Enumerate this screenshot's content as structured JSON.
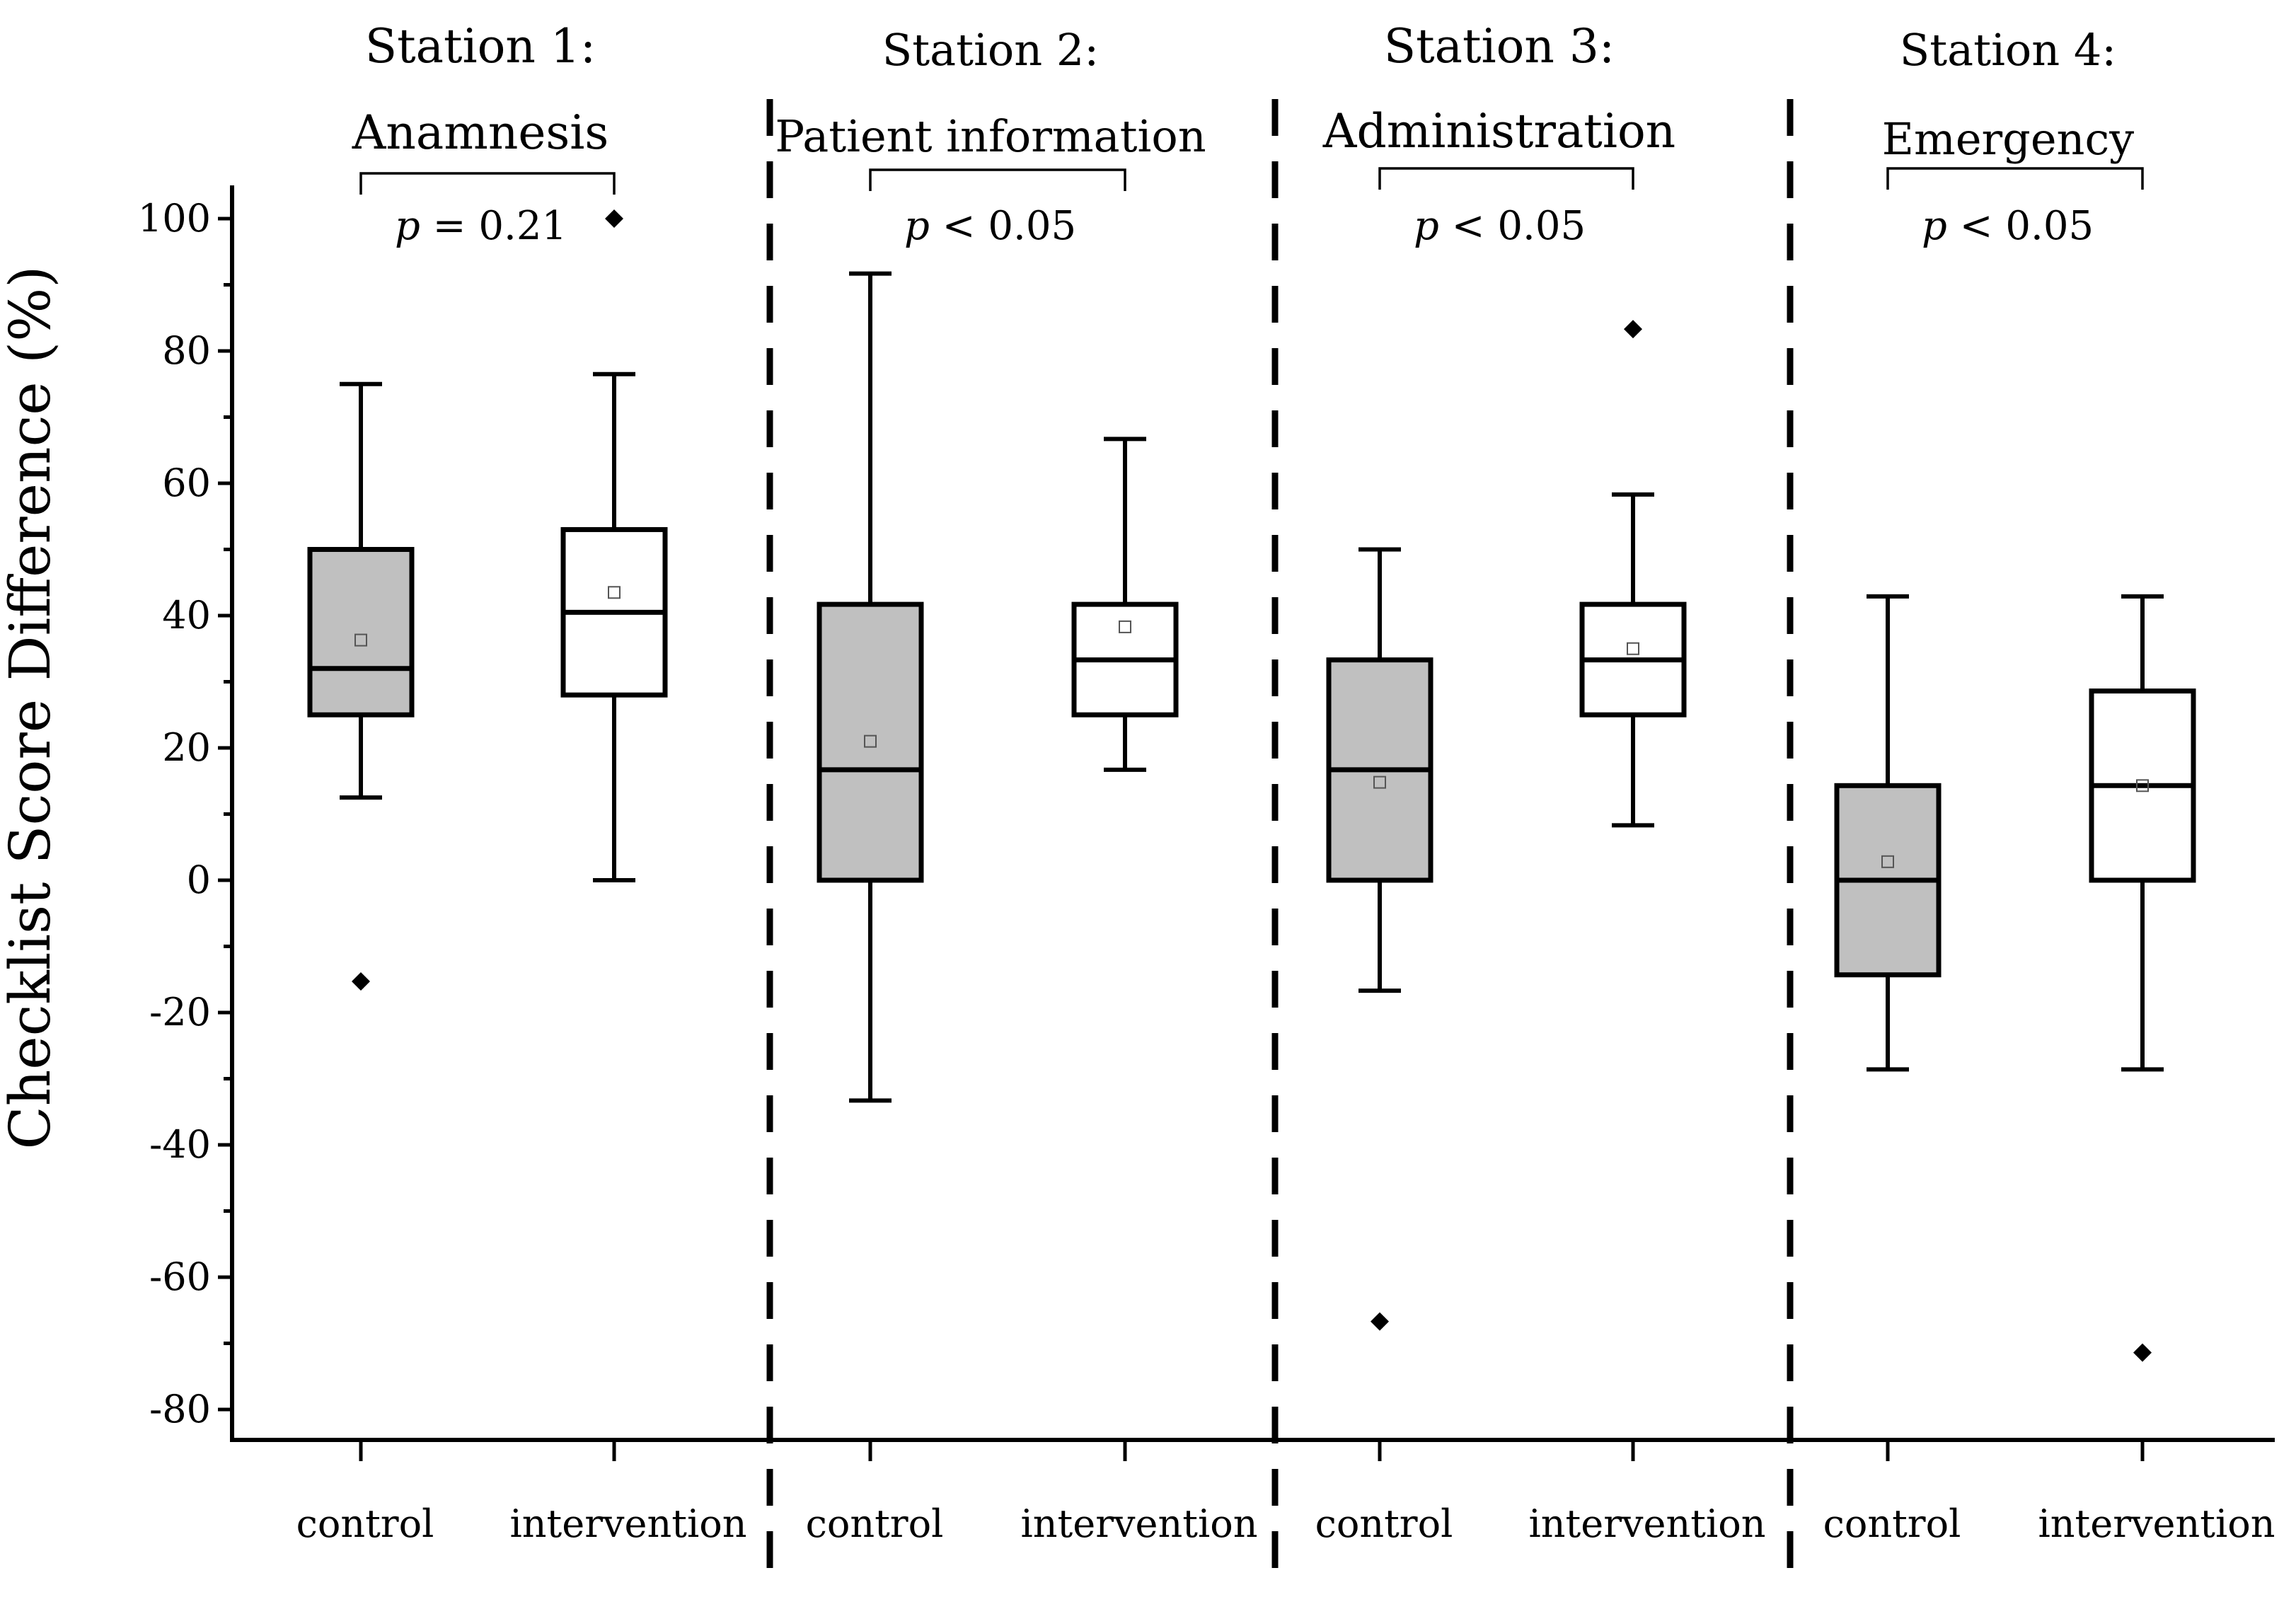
{
  "chart_data": {
    "type": "box",
    "ylabel": "Checklist Score Difference (%)",
    "ylim": [
      -85,
      105
    ],
    "yticks": [
      100,
      80,
      60,
      40,
      20,
      0,
      -20,
      -40,
      -60,
      -80
    ],
    "ytick_labels": [
      "100",
      "80",
      "60",
      "40",
      "20",
      "0",
      "-20",
      "-40",
      "-60",
      "-80"
    ],
    "colors": {
      "control": "#c0c0c0",
      "intervention": "#ffffff",
      "stroke": "#000000"
    },
    "stations": [
      {
        "title": "Station 1:",
        "subtitle": "Anamnesis",
        "p_sym": "p",
        "p_rest": " = 0.21",
        "groups": [
          {
            "label": "control",
            "whisker_low": 12.5,
            "q1": 25,
            "median": 32,
            "q3": 50,
            "whisker_high": 75,
            "mean": 36.3,
            "outliers": [
              -15.3
            ]
          },
          {
            "label": "intervention",
            "whisker_low": 0,
            "q1": 28,
            "median": 40.5,
            "q3": 53,
            "whisker_high": 76.5,
            "mean": 43.5,
            "outliers": [
              100
            ]
          }
        ]
      },
      {
        "title": "Station 2:",
        "subtitle": "Patient information",
        "p_sym": "p",
        "p_rest": " < 0.05",
        "groups": [
          {
            "label": "control",
            "whisker_low": -33.3,
            "q1": 0,
            "median": 16.7,
            "q3": 41.7,
            "whisker_high": 91.7,
            "mean": 21,
            "outliers": []
          },
          {
            "label": "intervention",
            "whisker_low": 16.7,
            "q1": 25,
            "median": 33.3,
            "q3": 41.7,
            "whisker_high": 66.7,
            "mean": 38.3,
            "outliers": []
          }
        ]
      },
      {
        "title": "Station 3:",
        "subtitle": "Administration",
        "p_sym": "p",
        "p_rest": " < 0.05",
        "groups": [
          {
            "label": "control",
            "whisker_low": -16.7,
            "q1": 0,
            "median": 16.7,
            "q3": 33.3,
            "whisker_high": 50,
            "mean": 14.8,
            "outliers": [
              -66.7
            ]
          },
          {
            "label": "intervention",
            "whisker_low": 8.3,
            "q1": 25,
            "median": 33.3,
            "q3": 41.7,
            "whisker_high": 58.3,
            "mean": 35,
            "outliers": [
              83.3
            ]
          }
        ]
      },
      {
        "title": "Station 4:",
        "subtitle": "Emergency",
        "p_sym": "p",
        "p_rest": " < 0.05",
        "groups": [
          {
            "label": "control",
            "whisker_low": -28.6,
            "q1": -14.3,
            "median": 0,
            "q3": 14.3,
            "whisker_high": 42.9,
            "mean": 2.8,
            "outliers": []
          },
          {
            "label": "intervention",
            "whisker_low": -28.6,
            "q1": 0,
            "median": 14.3,
            "q3": 28.6,
            "whisker_high": 42.9,
            "mean": 14.3,
            "outliers": [
              -71.4
            ]
          }
        ]
      }
    ]
  }
}
